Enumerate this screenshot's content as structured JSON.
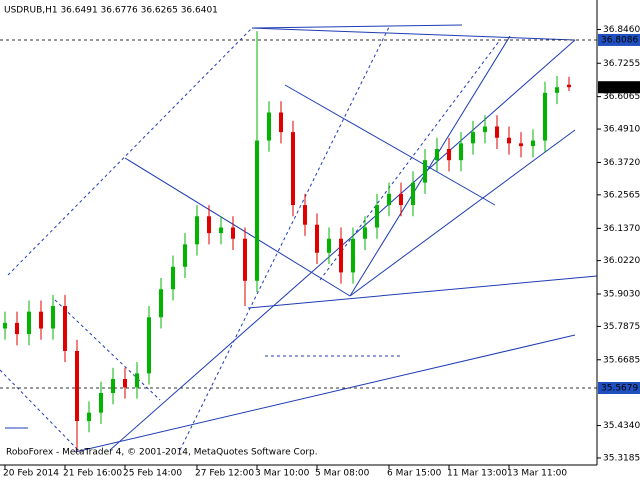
{
  "chart_data": {
    "type": "candlestick",
    "title": "USDRUB,H1 36.6491 36.6776 36.6265 36.6401",
    "footer": "RoboForex - MetaTrader 4, © 2001-2014, MetaQuotes Software Corp.",
    "up_color": "#00b400",
    "down_color": "#e00000",
    "categories": [
      "20 Feb 2014",
      null,
      null,
      null,
      null,
      "21 Feb 16:00",
      null,
      null,
      null,
      null,
      "25 Feb 14:00",
      null,
      null,
      null,
      null,
      null,
      "27 Feb 12:00",
      null,
      null,
      null,
      null,
      "3 Mar 10:00",
      null,
      null,
      null,
      null,
      "5 Mar 08:00",
      null,
      null,
      null,
      null,
      null,
      "6 Mar 15:00",
      null,
      null,
      null,
      null,
      "11 Mar 13:00",
      null,
      null,
      null,
      null,
      "13 Mar 11:00",
      null,
      null,
      null,
      null,
      null
    ],
    "open": [
      35.78,
      35.8,
      35.76,
      35.84,
      35.78,
      35.86,
      35.7,
      35.45,
      35.48,
      35.55,
      35.6,
      35.57,
      35.62,
      35.82,
      35.92,
      36.0,
      36.08,
      36.18,
      36.12,
      36.14,
      36.1,
      35.95,
      36.45,
      36.55,
      36.48,
      36.22,
      36.15,
      36.05,
      36.1,
      35.98,
      36.1,
      36.14,
      36.22,
      36.26,
      36.22,
      36.3,
      36.38,
      36.42,
      36.38,
      36.44,
      36.48,
      36.5,
      36.46,
      36.44,
      36.43,
      36.45,
      36.62,
      36.6491
    ],
    "high": [
      35.84,
      35.84,
      35.88,
      35.88,
      35.9,
      35.9,
      35.74,
      35.52,
      35.59,
      35.64,
      35.64,
      35.66,
      35.86,
      35.96,
      36.04,
      36.12,
      36.22,
      36.22,
      36.18,
      36.18,
      36.14,
      36.84,
      36.59,
      36.59,
      36.52,
      36.26,
      36.19,
      36.14,
      36.14,
      36.14,
      36.18,
      36.26,
      36.3,
      36.3,
      36.34,
      36.42,
      36.46,
      36.46,
      36.48,
      36.52,
      36.54,
      36.54,
      36.5,
      36.48,
      36.49,
      36.66,
      36.68,
      36.6776
    ],
    "low": [
      35.74,
      35.72,
      35.72,
      35.74,
      35.74,
      35.66,
      35.34,
      35.41,
      35.44,
      35.51,
      35.53,
      35.53,
      35.58,
      35.78,
      35.88,
      35.96,
      36.04,
      36.08,
      36.08,
      36.06,
      35.86,
      35.91,
      36.41,
      36.44,
      36.18,
      36.11,
      36.01,
      36.01,
      35.94,
      35.94,
      36.06,
      36.1,
      36.18,
      36.18,
      36.18,
      36.26,
      36.34,
      36.34,
      36.34,
      36.4,
      36.44,
      36.42,
      36.4,
      36.39,
      36.39,
      36.41,
      36.58,
      36.6265
    ],
    "close": [
      35.8,
      35.76,
      35.84,
      35.78,
      35.86,
      35.7,
      35.45,
      35.48,
      35.55,
      35.6,
      35.57,
      35.62,
      35.82,
      35.92,
      36.0,
      36.08,
      36.18,
      36.12,
      36.14,
      36.1,
      35.95,
      36.45,
      36.55,
      36.48,
      36.22,
      36.15,
      36.05,
      36.1,
      35.98,
      36.1,
      36.14,
      36.22,
      36.26,
      36.22,
      36.3,
      36.38,
      36.42,
      36.38,
      36.44,
      36.48,
      36.5,
      36.46,
      36.44,
      36.43,
      36.45,
      36.62,
      36.64,
      36.6401
    ],
    "ylim": [
      35.2934,
      36.951
    ],
    "yticks": [
      {
        "value": 36.846,
        "label": "36.8460"
      },
      36.7255,
      36.6065,
      {
        "value": 36.491,
        "label": "36.4910"
      },
      {
        "value": 36.372,
        "label": "36.3720"
      },
      36.2565,
      {
        "value": 36.137,
        "label": "36.1370"
      },
      {
        "value": 36.022,
        "label": "36.0220"
      },
      {
        "value": 35.903,
        "label": "35.9030"
      },
      35.7875,
      35.6685,
      {
        "value": 35.434,
        "label": "35.4340"
      },
      35.3185
    ],
    "levels": [
      {
        "value": 36.8086,
        "label": "36.8086",
        "color": "#2050c0",
        "dashed": true
      },
      {
        "value": 35.5679,
        "label": "35.5679",
        "color": "#2050c0",
        "dashed": true
      },
      {
        "value": 36.6401,
        "label": "36.6401",
        "color": "#000000",
        "dashed": false
      }
    ]
  }
}
